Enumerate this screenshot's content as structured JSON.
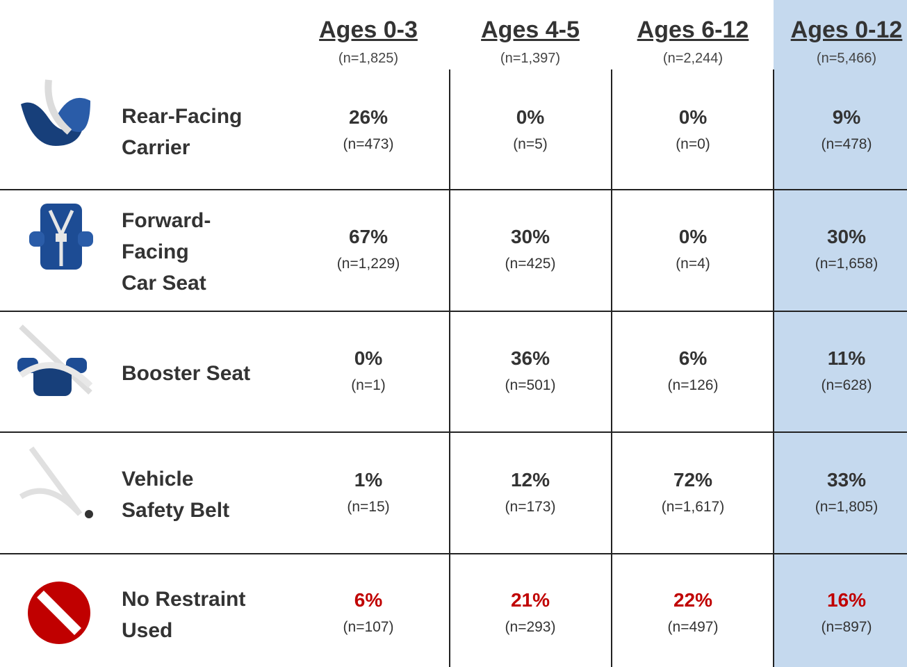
{
  "header": {
    "columns": [
      {
        "title": "Ages 0-3",
        "n": "(n=1,825)"
      },
      {
        "title": "Ages 4-5",
        "n": "(n=1,397)"
      },
      {
        "title": "Ages 6-12",
        "n": "(n=2,244)"
      },
      {
        "title": "Ages 0-12",
        "n": "(n=5,466)"
      }
    ]
  },
  "rows": [
    {
      "label": [
        "Rear-Facing",
        "Carrier"
      ],
      "cells": [
        {
          "pct": "26%",
          "n": "(n=473)"
        },
        {
          "pct": "0%",
          "n": "(n=5)"
        },
        {
          "pct": "0%",
          "n": "(n=0)"
        },
        {
          "pct": "9%",
          "n": "(n=478)"
        }
      ]
    },
    {
      "label": [
        "Forward-",
        "Facing",
        "Car Seat"
      ],
      "cells": [
        {
          "pct": "67%",
          "n": "(n=1,229)"
        },
        {
          "pct": "30%",
          "n": "(n=425)"
        },
        {
          "pct": "0%",
          "n": "(n=4)"
        },
        {
          "pct": "30%",
          "n": "(n=1,658)"
        }
      ]
    },
    {
      "label": [
        "Booster Seat"
      ],
      "cells": [
        {
          "pct": "0%",
          "n": "(n=1)"
        },
        {
          "pct": "36%",
          "n": "(n=501)"
        },
        {
          "pct": "6%",
          "n": "(n=126)"
        },
        {
          "pct": "11%",
          "n": "(n=628)"
        }
      ]
    },
    {
      "label": [
        "Vehicle",
        "Safety Belt"
      ],
      "cells": [
        {
          "pct": "1%",
          "n": "(n=15)"
        },
        {
          "pct": "12%",
          "n": "(n=173)"
        },
        {
          "pct": "72%",
          "n": "(n=1,617)"
        },
        {
          "pct": "33%",
          "n": "(n=1,805)"
        }
      ]
    },
    {
      "label": [
        "No Restraint",
        "Used"
      ],
      "color": "#c00000",
      "cells": [
        {
          "pct": "6%",
          "n": "(n=107)"
        },
        {
          "pct": "21%",
          "n": "(n=293)"
        },
        {
          "pct": "22%",
          "n": "(n=497)"
        },
        {
          "pct": "16%",
          "n": "(n=897)"
        }
      ]
    }
  ]
}
